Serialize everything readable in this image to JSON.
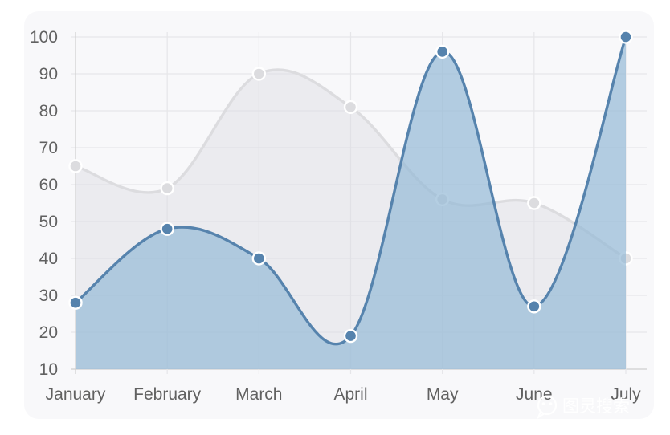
{
  "chart_data": {
    "type": "line",
    "categories": [
      "January",
      "February",
      "March",
      "April",
      "May",
      "June",
      "July"
    ],
    "series": [
      {
        "values": [
          65,
          59,
          90,
          81,
          56,
          55,
          40
        ],
        "color": "#dcdcdf",
        "fill": "rgba(220,220,226,0.45)"
      },
      {
        "values": [
          28,
          48,
          40,
          19,
          96,
          27,
          100
        ],
        "color": "#5683ad",
        "fill": "rgba(151,187,215,0.72)"
      }
    ],
    "yticks": [
      10,
      20,
      30,
      40,
      50,
      60,
      70,
      80,
      90,
      100
    ],
    "ylim": [
      10,
      100
    ],
    "grid": true,
    "curve": "smooth",
    "filled": true
  },
  "watermark": {
    "text": "图灵搜索",
    "icon": "wechat-icon"
  }
}
